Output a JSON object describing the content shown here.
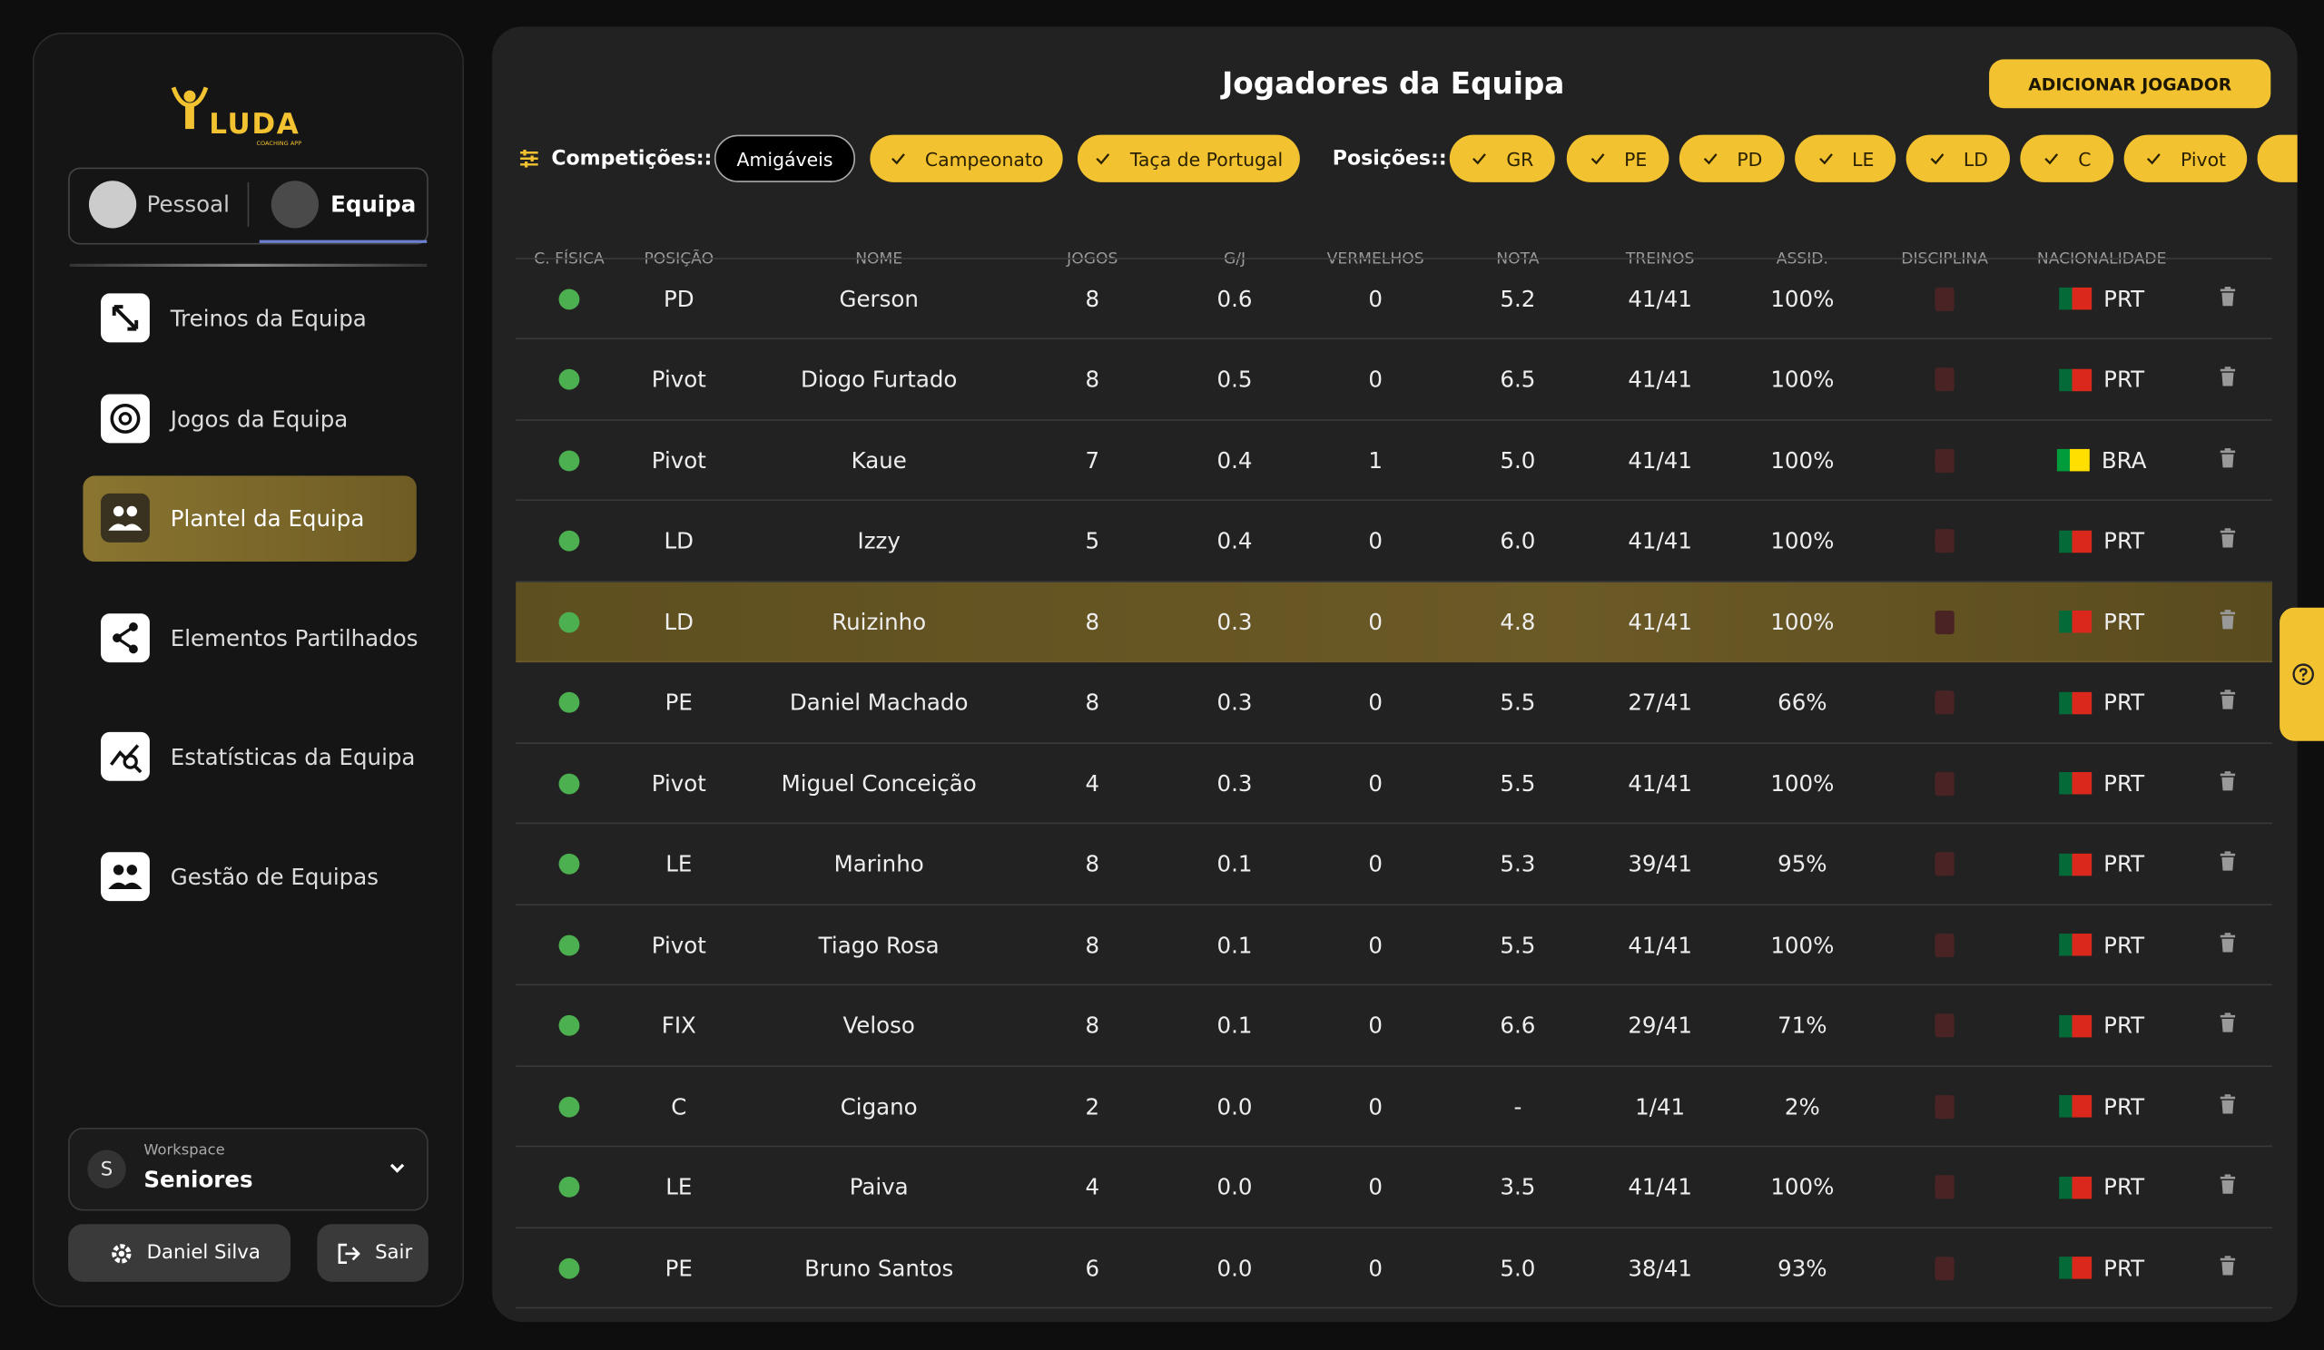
{
  "sidebar": {
    "logo": "LUDA",
    "logo_subtitle": "COACHING APP",
    "tabs": [
      "Pessoal",
      "Equipa"
    ],
    "active_tab": 1,
    "nav": [
      "Treinos da Equipa",
      "Jogos da Equipa",
      "Plantel da Equipa",
      "Elementos Partilhados",
      "Estatísticas da Equipa",
      "Gestão de Equipas"
    ],
    "active_nav": 2,
    "workspace": {
      "label": "Workspace",
      "name": "Seniores",
      "initial": "S"
    },
    "user": "Daniel Silva",
    "logout": "Sair"
  },
  "main": {
    "title": "Jogadores da Equipa",
    "add_button": "ADICIONAR JOGADOR",
    "competitions": {
      "label": "Competições::",
      "options": [
        {
          "label": "Amigáveis",
          "checked": false
        },
        {
          "label": "Campeonato",
          "checked": true
        },
        {
          "label": "Taça de Portugal",
          "checked": true
        }
      ]
    },
    "positions": {
      "label": "Posições::",
      "options": [
        {
          "label": "GR",
          "checked": true
        },
        {
          "label": "PE",
          "checked": true
        },
        {
          "label": "PD",
          "checked": true
        },
        {
          "label": "LE",
          "checked": true
        },
        {
          "label": "LD",
          "checked": true
        },
        {
          "label": "C",
          "checked": true
        },
        {
          "label": "Pivot",
          "checked": true
        }
      ]
    },
    "table": {
      "headers": [
        "C. FÍSICA",
        "POSIÇÃO",
        "NOME",
        "JOGOS",
        "G/J",
        "VERMELHOS",
        "NOTA",
        "TREINOS",
        "ASSID.",
        "DISCIPLINA",
        "NACIONALIDADE"
      ],
      "selected_row": 4,
      "rows": [
        {
          "position": "PD",
          "name": "Gerson",
          "games": "8",
          "goals_per_game": "0.6",
          "red_cards": "0",
          "rating": "5.2",
          "trainings": "41/41",
          "attendance": "100%",
          "nationality": "PRT",
          "flag": [
            "#046a38",
            "#da291c"
          ]
        },
        {
          "position": "Pivot",
          "name": "Diogo Furtado",
          "games": "8",
          "goals_per_game": "0.5",
          "red_cards": "0",
          "rating": "6.5",
          "trainings": "41/41",
          "attendance": "100%",
          "nationality": "PRT",
          "flag": [
            "#046a38",
            "#da291c"
          ]
        },
        {
          "position": "Pivot",
          "name": "Kaue",
          "games": "7",
          "goals_per_game": "0.4",
          "red_cards": "1",
          "rating": "5.0",
          "trainings": "41/41",
          "attendance": "100%",
          "nationality": "BRA",
          "flag": [
            "#009c3b",
            "#ffdf00"
          ]
        },
        {
          "position": "LD",
          "name": "Izzy",
          "games": "5",
          "goals_per_game": "0.4",
          "red_cards": "0",
          "rating": "6.0",
          "trainings": "41/41",
          "attendance": "100%",
          "nationality": "PRT",
          "flag": [
            "#046a38",
            "#da291c"
          ]
        },
        {
          "position": "LD",
          "name": "Ruizinho",
          "games": "8",
          "goals_per_game": "0.3",
          "red_cards": "0",
          "rating": "4.8",
          "trainings": "41/41",
          "attendance": "100%",
          "nationality": "PRT",
          "flag": [
            "#046a38",
            "#da291c"
          ]
        },
        {
          "position": "PE",
          "name": "Daniel Machado",
          "games": "8",
          "goals_per_game": "0.3",
          "red_cards": "0",
          "rating": "5.5",
          "trainings": "27/41",
          "attendance": "66%",
          "nationality": "PRT",
          "flag": [
            "#046a38",
            "#da291c"
          ]
        },
        {
          "position": "Pivot",
          "name": "Miguel Conceição",
          "games": "4",
          "goals_per_game": "0.3",
          "red_cards": "0",
          "rating": "5.5",
          "trainings": "41/41",
          "attendance": "100%",
          "nationality": "PRT",
          "flag": [
            "#046a38",
            "#da291c"
          ]
        },
        {
          "position": "LE",
          "name": "Marinho",
          "games": "8",
          "goals_per_game": "0.1",
          "red_cards": "0",
          "rating": "5.3",
          "trainings": "39/41",
          "attendance": "95%",
          "nationality": "PRT",
          "flag": [
            "#046a38",
            "#da291c"
          ]
        },
        {
          "position": "Pivot",
          "name": "Tiago Rosa",
          "games": "8",
          "goals_per_game": "0.1",
          "red_cards": "0",
          "rating": "5.5",
          "trainings": "41/41",
          "attendance": "100%",
          "nationality": "PRT",
          "flag": [
            "#046a38",
            "#da291c"
          ]
        },
        {
          "position": "FIX",
          "name": "Veloso",
          "games": "8",
          "goals_per_game": "0.1",
          "red_cards": "0",
          "rating": "6.6",
          "trainings": "29/41",
          "attendance": "71%",
          "nationality": "PRT",
          "flag": [
            "#046a38",
            "#da291c"
          ]
        },
        {
          "position": "C",
          "name": "Cigano",
          "games": "2",
          "goals_per_game": "0.0",
          "red_cards": "0",
          "rating": "-",
          "trainings": "1/41",
          "attendance": "2%",
          "nationality": "PRT",
          "flag": [
            "#046a38",
            "#da291c"
          ]
        },
        {
          "position": "LE",
          "name": "Paiva",
          "games": "4",
          "goals_per_game": "0.0",
          "red_cards": "0",
          "rating": "3.5",
          "trainings": "41/41",
          "attendance": "100%",
          "nationality": "PRT",
          "flag": [
            "#046a38",
            "#da291c"
          ]
        },
        {
          "position": "PE",
          "name": "Bruno Santos",
          "games": "6",
          "goals_per_game": "0.0",
          "red_cards": "0",
          "rating": "5.0",
          "trainings": "38/41",
          "attendance": "93%",
          "nationality": "PRT",
          "flag": [
            "#046a38",
            "#da291c"
          ]
        }
      ]
    }
  }
}
